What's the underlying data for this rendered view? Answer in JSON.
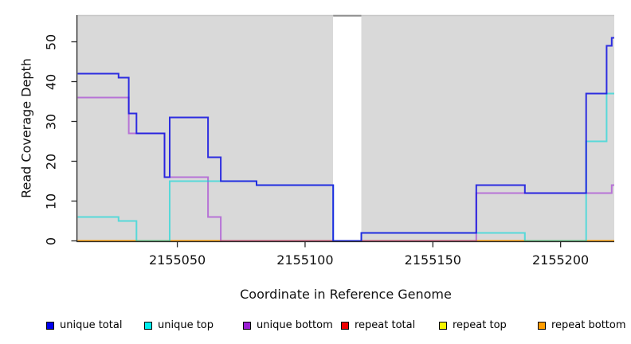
{
  "chart_data": {
    "type": "line",
    "subtype": "step",
    "title": "",
    "xlabel": "Coordinate in Reference Genome",
    "ylabel": "Read Coverage Depth",
    "x_ticks": [
      2155050,
      2155100,
      2155150,
      2155200
    ],
    "y_ticks": [
      0,
      10,
      20,
      30,
      40,
      50
    ],
    "xlim": [
      2155011,
      2155221
    ],
    "ylim": [
      0,
      56
    ],
    "grid": "off",
    "legend_position": "bottom",
    "panel_fill": "#d9d9d9",
    "panel_top_border": "#c6c6c6",
    "gap_top_border": "#8f8f8f",
    "axis_color": "#2a2a2a",
    "coverage_gap_x": [
      2155111,
      2155122
    ],
    "legend": [
      {
        "label": "unique total",
        "color": "#0000ee"
      },
      {
        "label": "unique top",
        "color": "#00eeee"
      },
      {
        "label": "unique bottom",
        "color": "#9b1fd4"
      },
      {
        "label": "repeat total",
        "color": "#ee0000"
      },
      {
        "label": "repeat top",
        "color": "#f5f500"
      },
      {
        "label": "repeat bottom",
        "color": "#ff9d00"
      }
    ],
    "series": [
      {
        "name": "repeat total",
        "color": "#ee0000",
        "opacity": 1,
        "points": [
          [
            2155011,
            0
          ]
        ]
      },
      {
        "name": "repeat top",
        "color": "#f5f500",
        "opacity": 1,
        "points": [
          [
            2155011,
            0
          ]
        ]
      },
      {
        "name": "repeat bottom",
        "color": "#ff9d00",
        "opacity": 1,
        "points": [
          [
            2155011,
            0
          ]
        ]
      },
      {
        "name": "unique bottom",
        "color": "#9b1fd4",
        "opacity": 0.55,
        "points": [
          [
            2155011,
            36
          ],
          [
            2155031,
            27
          ],
          [
            2155045,
            16
          ],
          [
            2155062,
            6
          ],
          [
            2155067,
            0
          ],
          [
            2155167,
            12
          ],
          [
            2155220,
            14
          ]
        ]
      },
      {
        "name": "unique top",
        "color": "#00d9d9",
        "opacity": 0.6,
        "points": [
          [
            2155011,
            6
          ],
          [
            2155027,
            5
          ],
          [
            2155034,
            0
          ],
          [
            2155047,
            15
          ],
          [
            2155081,
            14
          ],
          [
            2155111,
            0
          ],
          [
            2155122,
            2
          ],
          [
            2155186,
            0
          ],
          [
            2155210,
            25
          ],
          [
            2155218,
            37
          ]
        ]
      },
      {
        "name": "unique total",
        "color": "#1a1ae0",
        "opacity": 0.9,
        "points": [
          [
            2155011,
            42
          ],
          [
            2155027,
            41
          ],
          [
            2155031,
            32
          ],
          [
            2155034,
            27
          ],
          [
            2155045,
            16
          ],
          [
            2155047,
            31
          ],
          [
            2155062,
            21
          ],
          [
            2155067,
            15
          ],
          [
            2155081,
            14
          ],
          [
            2155111,
            0
          ],
          [
            2155122,
            2
          ],
          [
            2155167,
            14
          ],
          [
            2155186,
            12
          ],
          [
            2155210,
            37
          ],
          [
            2155218,
            49
          ],
          [
            2155220,
            51
          ]
        ]
      }
    ]
  }
}
